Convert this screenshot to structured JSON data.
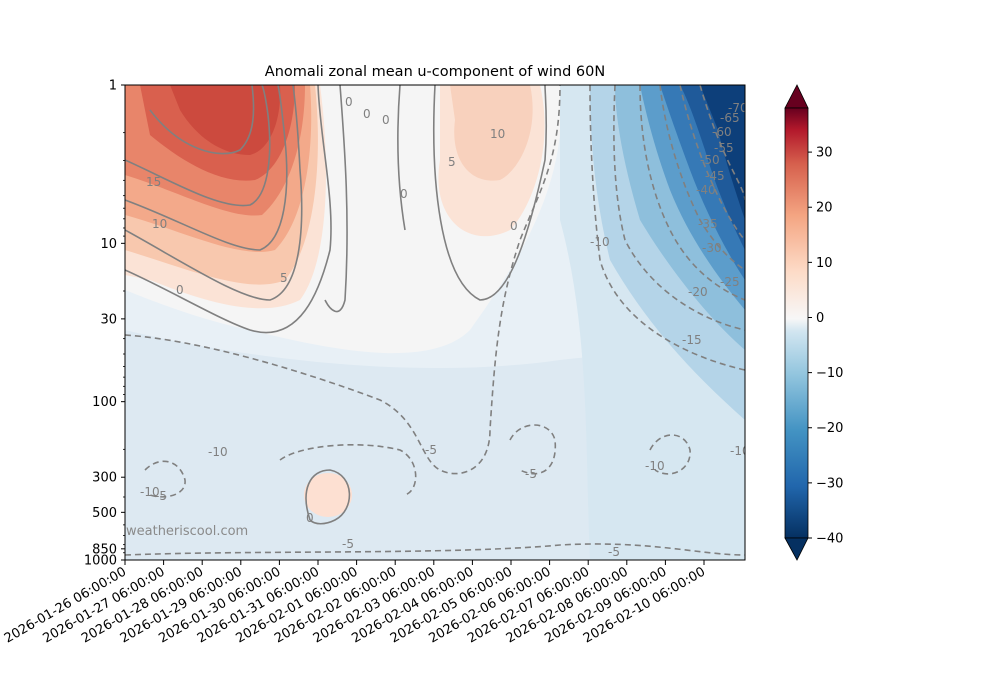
{
  "chart_data": {
    "type": "heatmap",
    "title": "Anomali zonal mean u-component of wind 60N",
    "watermark": "weatheriscool.com",
    "xlabel": "",
    "ylabel": "",
    "x_tick_labels": [
      "2026-01-26 06:00:00",
      "2026-01-27 06:00:00",
      "2026-01-28 06:00:00",
      "2026-01-29 06:00:00",
      "2026-01-30 06:00:00",
      "2026-01-31 06:00:00",
      "2026-02-01 06:00:00",
      "2026-02-02 06:00:00",
      "2026-02-03 06:00:00",
      "2026-02-04 06:00:00",
      "2026-02-05 06:00:00",
      "2026-02-06 06:00:00",
      "2026-02-07 06:00:00",
      "2026-02-08 06:00:00",
      "2026-02-09 06:00:00",
      "2026-02-10 06:00:00"
    ],
    "y_axis": {
      "scale": "log",
      "inverted": true,
      "range": [
        1000,
        1
      ]
    },
    "y_tick_labels": [
      "1",
      "10",
      "30",
      "100",
      "300",
      "500",
      "850",
      "1000"
    ],
    "colorbar": {
      "range": [
        -40,
        38
      ],
      "ticks": [
        "30",
        "20",
        "10",
        "0",
        "−10",
        "−20",
        "−30",
        "−40"
      ],
      "colormap": "RdBu_r",
      "extend": "both"
    },
    "contour_labels": [
      "0",
      "0",
      "0",
      "10",
      "5",
      "0",
      "0",
      "15",
      "10",
      "0",
      "5",
      "10",
      "0",
      "-10",
      "-10",
      "-5",
      "-5",
      "-5",
      "-5",
      "-5",
      "0",
      "-10",
      "-15",
      "-20",
      "-25",
      "-30",
      "-35",
      "-40",
      "-45",
      "-50",
      "-55",
      "-60",
      "-65",
      "-70",
      "-10",
      "-10"
    ],
    "key_features": {
      "positive_anomaly_max": "about 30 near 1 hPa, 2026-01-27 to 2026-01-29",
      "negative_anomaly_min": "below -40 at upper levels, 2026-02-09 to 2026-02-10"
    }
  }
}
